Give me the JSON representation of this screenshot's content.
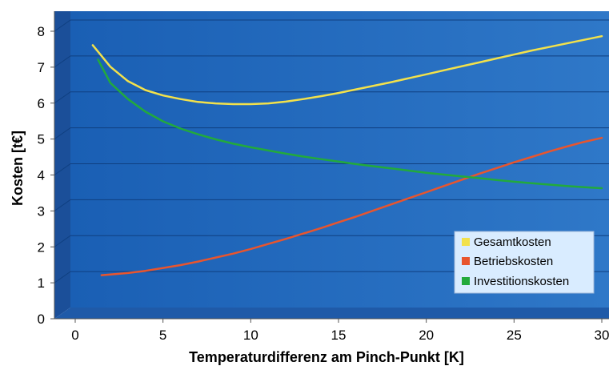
{
  "chart_data": {
    "type": "line",
    "xlabel": "Temperaturdifferenz am Pinch-Punkt [K]",
    "ylabel": "Kosten [t€]",
    "xlim": [
      0,
      30
    ],
    "ylim": [
      0,
      8
    ],
    "xticks": [
      0,
      5,
      10,
      15,
      20,
      25,
      30
    ],
    "yticks": [
      0,
      1,
      2,
      3,
      4,
      5,
      6,
      7,
      8
    ],
    "grid": true,
    "legend_position": "bottom-right",
    "series": [
      {
        "name": "Gesamtkosten",
        "color": "#f2e14b",
        "x": [
          1,
          2,
          3,
          4,
          5,
          6,
          7,
          8,
          9,
          10,
          11,
          12,
          13,
          14,
          15,
          16,
          17,
          18,
          19,
          20,
          21,
          22,
          23,
          24,
          25,
          26,
          27,
          28,
          29,
          30
        ],
        "y": [
          7.3,
          6.7,
          6.3,
          6.05,
          5.9,
          5.8,
          5.72,
          5.68,
          5.66,
          5.66,
          5.68,
          5.73,
          5.8,
          5.88,
          5.97,
          6.07,
          6.17,
          6.27,
          6.38,
          6.49,
          6.6,
          6.71,
          6.82,
          6.93,
          7.04,
          7.15,
          7.25,
          7.35,
          7.45,
          7.55
        ]
      },
      {
        "name": "Betriebskosten",
        "color": "#e8552e",
        "x": [
          1.5,
          2,
          3,
          4,
          5,
          6,
          7,
          8,
          9,
          10,
          11,
          12,
          13,
          14,
          15,
          16,
          17,
          18,
          19,
          20,
          21,
          22,
          23,
          24,
          25,
          26,
          27,
          28,
          29,
          30
        ],
        "y": [
          0.9,
          0.92,
          0.96,
          1.02,
          1.1,
          1.18,
          1.28,
          1.39,
          1.5,
          1.63,
          1.77,
          1.91,
          2.06,
          2.21,
          2.37,
          2.53,
          2.7,
          2.87,
          3.04,
          3.21,
          3.38,
          3.55,
          3.72,
          3.88,
          4.04,
          4.19,
          4.34,
          4.48,
          4.61,
          4.72
        ]
      },
      {
        "name": "Investitionskosten",
        "color": "#22aa3c",
        "x": [
          1.3,
          2,
          3,
          4,
          5,
          6,
          7,
          8,
          9,
          10,
          11,
          12,
          13,
          14,
          15,
          16,
          17,
          18,
          19,
          20,
          21,
          22,
          23,
          24,
          25,
          26,
          27,
          28,
          29,
          30
        ],
        "y": [
          6.9,
          6.25,
          5.8,
          5.45,
          5.18,
          4.98,
          4.82,
          4.68,
          4.56,
          4.46,
          4.37,
          4.28,
          4.2,
          4.13,
          4.06,
          3.99,
          3.93,
          3.87,
          3.81,
          3.75,
          3.7,
          3.65,
          3.6,
          3.55,
          3.5,
          3.46,
          3.42,
          3.38,
          3.35,
          3.32
        ]
      }
    ]
  }
}
